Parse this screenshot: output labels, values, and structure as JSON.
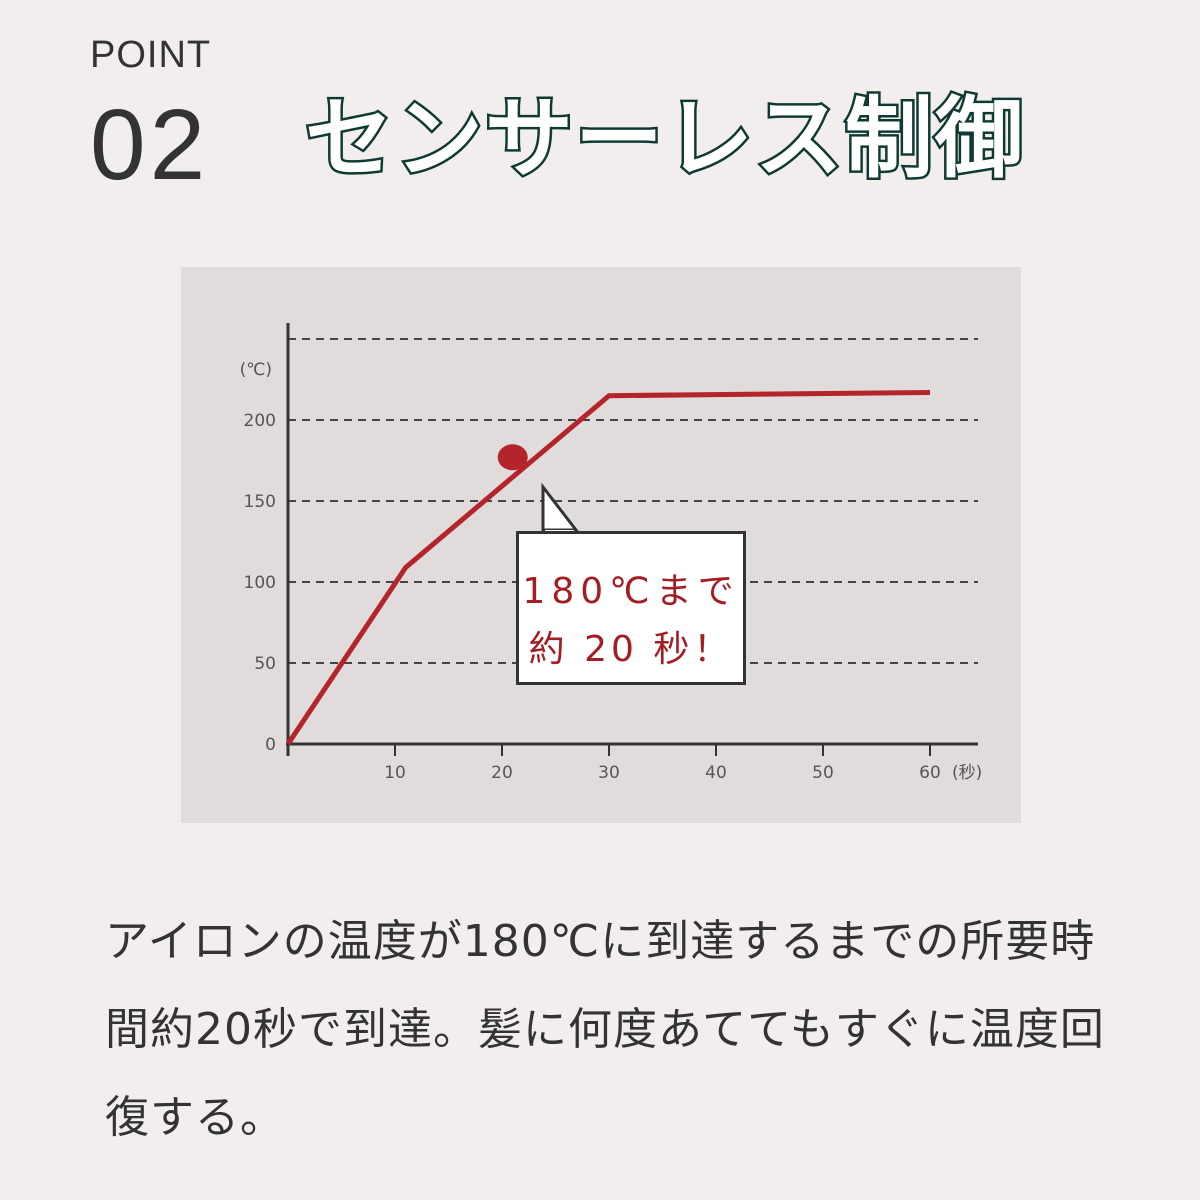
{
  "header": {
    "point_label": "POINT",
    "point_number": "02",
    "title": "センサーレス制御"
  },
  "colors": {
    "background": "#f3eeee",
    "chart_background": "#e0dcdb",
    "line": "#b3242b",
    "title_stroke": "#0f3a33",
    "text": "#333333"
  },
  "chart_data": {
    "type": "line",
    "ylabel": "(℃)",
    "xlabel": "(秒)",
    "xlim": [
      0,
      64
    ],
    "ylim": [
      0,
      250
    ],
    "x_ticks": [
      10,
      20,
      30,
      40,
      50,
      60
    ],
    "y_ticks": [
      0,
      50,
      100,
      150,
      200
    ],
    "grid": "horizontal dashed",
    "series": [
      {
        "x": [
          0,
          11,
          30,
          60
        ],
        "y": [
          0,
          109,
          215,
          217
        ]
      }
    ],
    "marker": {
      "x": 21,
      "y": 177
    },
    "annotation": {
      "line1": "180℃まで",
      "line2": "約 20 秒！"
    }
  },
  "description": "アイロンの温度が180℃に到達するまでの所要時間約20秒で到達。髪に何度あててもすぐに温度回復する。"
}
